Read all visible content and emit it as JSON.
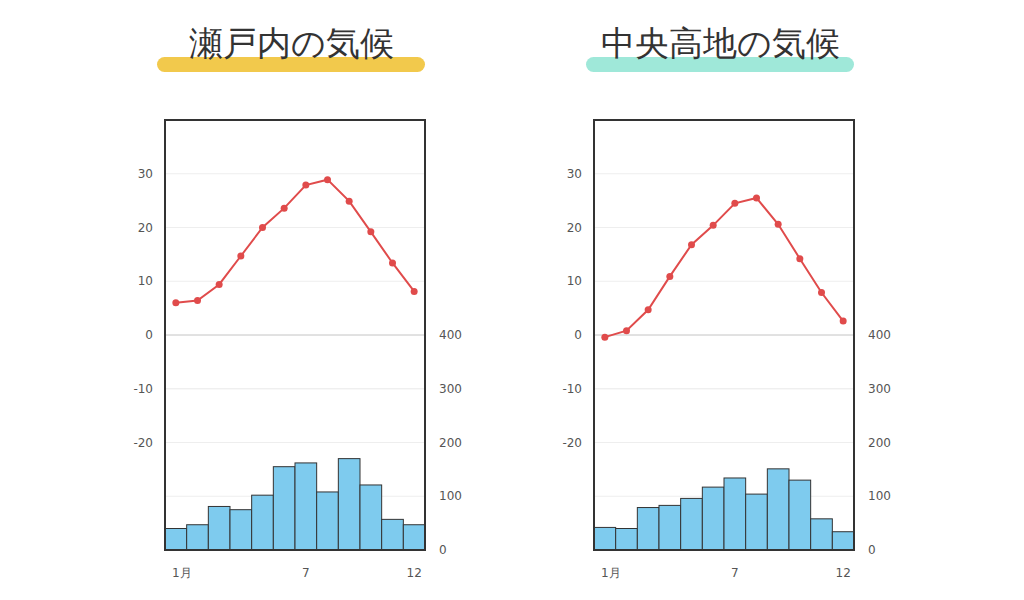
{
  "chart_data": [
    {
      "type": "combo",
      "title": "瀬戸内の気候",
      "categories": [
        "1月",
        null,
        null,
        null,
        null,
        null,
        "7",
        null,
        null,
        null,
        null,
        "12"
      ],
      "ylim": [
        -40,
        40
      ],
      "yticks": [
        -20,
        -10,
        0,
        10,
        20,
        30
      ],
      "y2lim": [
        0,
        800
      ],
      "y2ticks": [
        0,
        100,
        200,
        300,
        400
      ],
      "grid": true,
      "series": [
        {
          "type": "line",
          "color": "#e04b4b",
          "marker": "circle",
          "values": [
            6.0,
            6.4,
            9.4,
            14.7,
            20.0,
            23.6,
            27.9,
            28.9,
            24.9,
            19.2,
            13.4,
            8.1
          ]
        },
        {
          "type": "bar",
          "axis": "y2",
          "color": "#7ecbee",
          "values": [
            40,
            47,
            81,
            75,
            102,
            155,
            162,
            108,
            170,
            121,
            57,
            47
          ]
        }
      ]
    },
    {
      "type": "combo",
      "title": "中央高地の気候",
      "categories": [
        "1月",
        null,
        null,
        null,
        null,
        null,
        "7",
        null,
        null,
        null,
        null,
        "12"
      ],
      "ylim": [
        -40,
        40
      ],
      "yticks": [
        -20,
        -10,
        0,
        10,
        20,
        30
      ],
      "y2lim": [
        0,
        800
      ],
      "y2ticks": [
        0,
        100,
        200,
        300,
        400
      ],
      "grid": true,
      "series": [
        {
          "type": "line",
          "color": "#e04b4b",
          "marker": "circle",
          "values": [
            -0.4,
            0.8,
            4.7,
            10.9,
            16.8,
            20.4,
            24.5,
            25.5,
            20.6,
            14.2,
            7.9,
            2.6
          ]
        },
        {
          "type": "bar",
          "axis": "y2",
          "color": "#7ecbee",
          "values": [
            42,
            40,
            79,
            83,
            96,
            117,
            134,
            104,
            151,
            130,
            58,
            34
          ]
        }
      ]
    }
  ]
}
